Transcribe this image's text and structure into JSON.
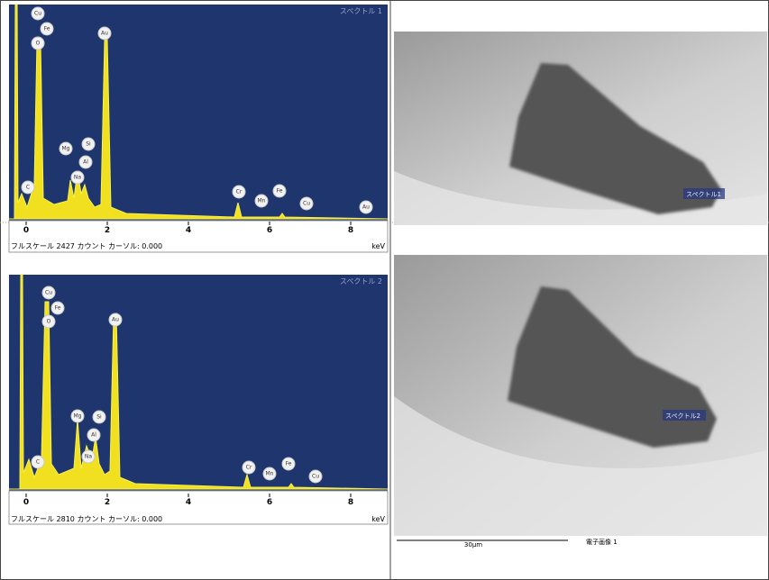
{
  "spectra": [
    {
      "label": "スペクトル 1",
      "peaks": [
        "Cu",
        "Fe",
        "O",
        "Au",
        "Mg",
        "Si",
        "Al",
        "Na",
        "C",
        "Cr",
        "Mn",
        "Fe",
        "Cu",
        "Au"
      ],
      "ticks": [
        "0",
        "2",
        "4",
        "6",
        "8"
      ],
      "unit": "keV",
      "footer": "フルスケール 2427 カウント カーソル: 0.000"
    },
    {
      "label": "スペクトル 2",
      "peaks": [
        "Cu",
        "Fe",
        "O",
        "Au",
        "Mg",
        "Si",
        "Al",
        "Na",
        "C",
        "Cr",
        "Mn",
        "Fe",
        "Cu"
      ],
      "ticks": [
        "0",
        "2",
        "4",
        "6",
        "8"
      ],
      "unit": "keV",
      "footer": "フルスケール 2810 カウント カーソル: 0.000"
    }
  ],
  "images": [
    {
      "marker": "スペクトル1"
    },
    {
      "marker": "スペクトル2"
    }
  ],
  "scale_bar": {
    "length": "30μm",
    "caption": "電子画像 1"
  }
}
